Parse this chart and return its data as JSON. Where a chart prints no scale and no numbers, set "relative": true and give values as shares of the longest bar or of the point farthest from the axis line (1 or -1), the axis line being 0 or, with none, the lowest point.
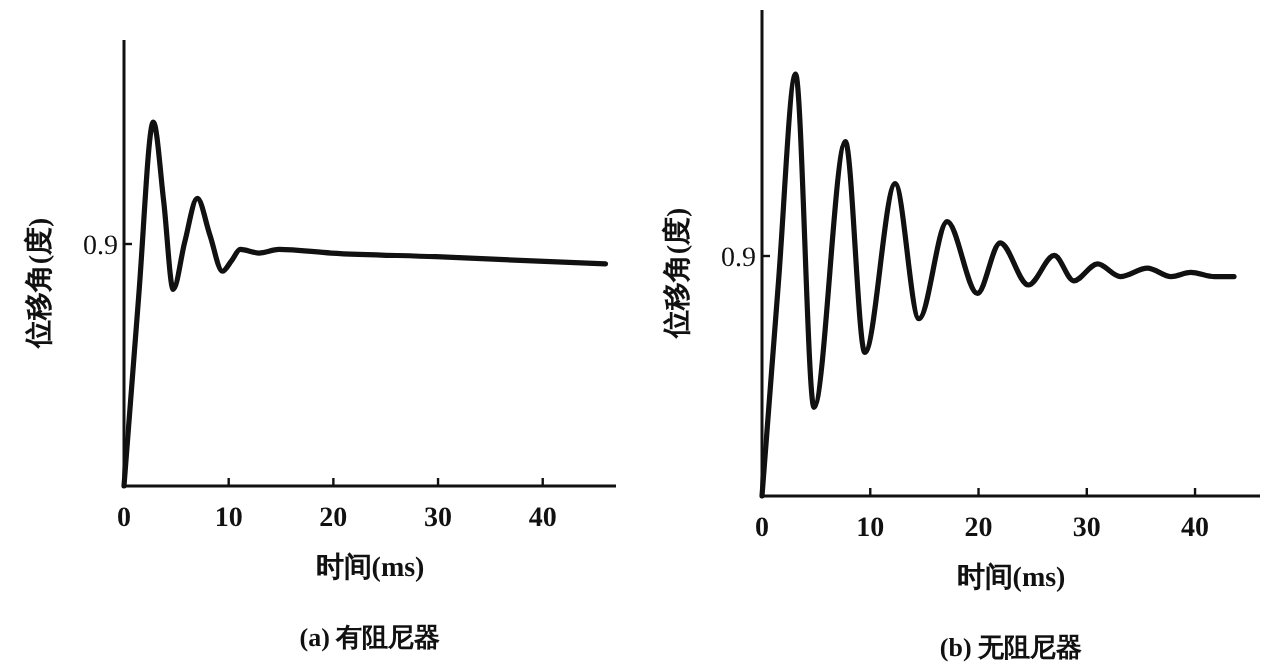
{
  "chart_data": [
    {
      "type": "line",
      "title": "(a) 有阻尼器",
      "xlabel": "时间(ms)",
      "ylabel": "位移角(度)",
      "xlim": [
        0,
        47
      ],
      "xticks": [
        0,
        10,
        20,
        30,
        40
      ],
      "relative": true,
      "annotations": [
        "0.9"
      ],
      "series": [
        {
          "color": "#111111",
          "x": [
            0,
            1.4,
            2.8,
            3.8,
            4.7,
            5.8,
            7.0,
            8.2,
            9.4,
            10.3,
            11.1,
            12.9,
            14.8,
            19.8,
            29.8,
            46
          ],
          "values": [
            0,
            0.52,
            1,
            0.78,
            0.54,
            0.67,
            0.79,
            0.69,
            0.59,
            0.62,
            0.65,
            0.64,
            0.65,
            0.64,
            0.63,
            0.61
          ]
        }
      ]
    },
    {
      "type": "line",
      "title": "(b) 无阻尼器",
      "xlabel": "时间(ms)",
      "ylabel": "位移角(度)",
      "xlim": [
        0,
        46
      ],
      "xticks": [
        0,
        10,
        20,
        30,
        40
      ],
      "relative": true,
      "annotations": [
        "0.9"
      ],
      "series": [
        {
          "color": "#111111",
          "x": [
            0,
            1.5,
            3.1,
            4.8,
            7.7,
            9.5,
            12.3,
            14.5,
            17.1,
            19.9,
            22.0,
            24.6,
            27,
            28.8,
            31,
            33.1,
            35.6,
            37.8,
            39.6,
            41.8,
            43.6
          ],
          "values": [
            0,
            0.5,
            1,
            0.21,
            0.84,
            0.34,
            0.74,
            0.42,
            0.65,
            0.48,
            0.6,
            0.5,
            0.57,
            0.51,
            0.55,
            0.52,
            0.54,
            0.52,
            0.53,
            0.52,
            0.52
          ]
        }
      ]
    }
  ]
}
